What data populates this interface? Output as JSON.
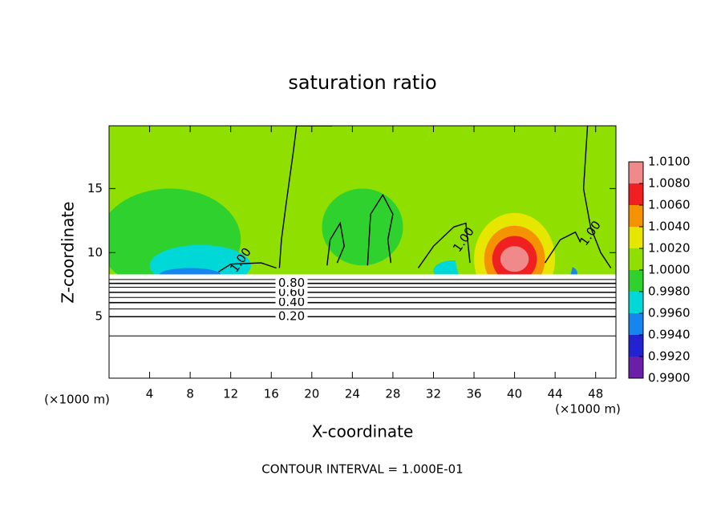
{
  "chart_data": {
    "type": "contour",
    "title": "saturation ratio",
    "x_label": "X-coordinate",
    "y_label": "Z-coordinate",
    "x_unit": "(×1000 m)",
    "note": "CONTOUR INTERVAL = 1.000E-01",
    "xlim": [
      0,
      50
    ],
    "xticks": [
      4,
      8,
      12,
      16,
      20,
      24,
      28,
      32,
      36,
      40,
      44,
      48
    ],
    "ylim": [
      0.2,
      19.9
    ],
    "yticks": [
      5,
      10,
      15
    ],
    "colorbar": {
      "ticks": [
        {
          "value": 0.99,
          "label": "0.9900"
        },
        {
          "value": 0.992,
          "label": "0.9920"
        },
        {
          "value": 0.994,
          "label": "0.9940"
        },
        {
          "value": 0.996,
          "label": "0.9960"
        },
        {
          "value": 0.998,
          "label": "0.9980"
        },
        {
          "value": 1.0,
          "label": "1.0000"
        },
        {
          "value": 1.002,
          "label": "1.0020"
        },
        {
          "value": 1.004,
          "label": "1.0040"
        },
        {
          "value": 1.006,
          "label": "1.0060"
        },
        {
          "value": 1.008,
          "label": "1.0080"
        },
        {
          "value": 1.01,
          "label": "1.0100"
        }
      ],
      "colors": [
        "#6a1fa8",
        "#2222d0",
        "#1585f0",
        "#00d8d8",
        "#2fd12f",
        "#8fe000",
        "#e6e600",
        "#f59200",
        "#f02020",
        "#f08a8a"
      ]
    },
    "background_value": 1.0,
    "features": [
      {
        "value": 0.9985,
        "x": 6,
        "z": 11,
        "rx": 7,
        "rz": 4
      },
      {
        "value": 0.9968,
        "x": 9,
        "z": 9,
        "rx": 5,
        "rz": 1.6
      },
      {
        "value": 0.9945,
        "x": 8,
        "z": 8.3,
        "rx": 3,
        "rz": 0.5
      },
      {
        "value": 0.9985,
        "x": 25,
        "z": 12,
        "rx": 4,
        "rz": 3
      },
      {
        "value": 0.9968,
        "x": 34,
        "z": 8.6,
        "rx": 2,
        "rz": 0.8
      },
      {
        "value": 0.9945,
        "x": 45,
        "z": 8.4,
        "rx": 1.2,
        "rz": 0.6
      },
      {
        "value": 1.001,
        "x": 40,
        "z": 11,
        "rx": 6,
        "rz": 7
      },
      {
        "value": 1.003,
        "x": 40,
        "z": 9.5,
        "rx": 4,
        "rz": 3.6
      },
      {
        "value": 1.005,
        "x": 40,
        "z": 9.5,
        "rx": 3,
        "rz": 2.6
      },
      {
        "value": 1.007,
        "x": 40,
        "z": 9.5,
        "rx": 2.2,
        "rz": 1.8
      },
      {
        "value": 1.009,
        "x": 40,
        "z": 9.5,
        "rx": 1.4,
        "rz": 1.0
      }
    ],
    "cloud_base": 8.3,
    "contours": {
      "levels": [
        0.1,
        0.2,
        0.3,
        0.4,
        0.5,
        0.6,
        0.7,
        0.8,
        0.9
      ],
      "z": [
        3.5,
        5.0,
        5.6,
        6.1,
        6.5,
        6.9,
        7.3,
        7.6,
        7.9
      ],
      "level_labels": [
        null,
        "0.20",
        null,
        "0.40",
        null,
        "0.60",
        null,
        "0.80",
        null
      ],
      "label_x": 18
    },
    "contour_1": {
      "level": 1.0,
      "x": [
        16.8,
        17,
        17.5,
        18.2,
        18.5,
        22,
        null,
        47.2,
        46.8,
        47.5,
        48.5,
        49.5,
        null,
        30.5,
        32,
        34,
        35.2,
        35.6,
        null,
        21.5,
        21.8,
        22.8,
        23.2,
        22.5,
        null,
        25.5,
        25.8,
        27,
        28,
        27.5,
        27.8,
        null,
        10.8,
        12,
        15,
        16.5,
        null,
        43,
        44.5,
        46,
        46.5
      ],
      "z": [
        8.8,
        11,
        14,
        18,
        19.9,
        19.9,
        null,
        19.9,
        15,
        12,
        10,
        8.8,
        null,
        8.8,
        10.5,
        12,
        12.3,
        9.2,
        null,
        9,
        11,
        12.3,
        10.5,
        9.2,
        null,
        9,
        13,
        14.5,
        13,
        11,
        9.2,
        null,
        8.5,
        9.1,
        9.2,
        8.8,
        null,
        9.2,
        11,
        11.6,
        10.8
      ],
      "labels": [
        {
          "text": "1.00",
          "x": 13,
          "z": 9.4
        },
        {
          "text": "1.00",
          "x": 35,
          "z": 11
        },
        {
          "text": "1.00",
          "x": 47.5,
          "z": 11.5
        }
      ]
    }
  }
}
